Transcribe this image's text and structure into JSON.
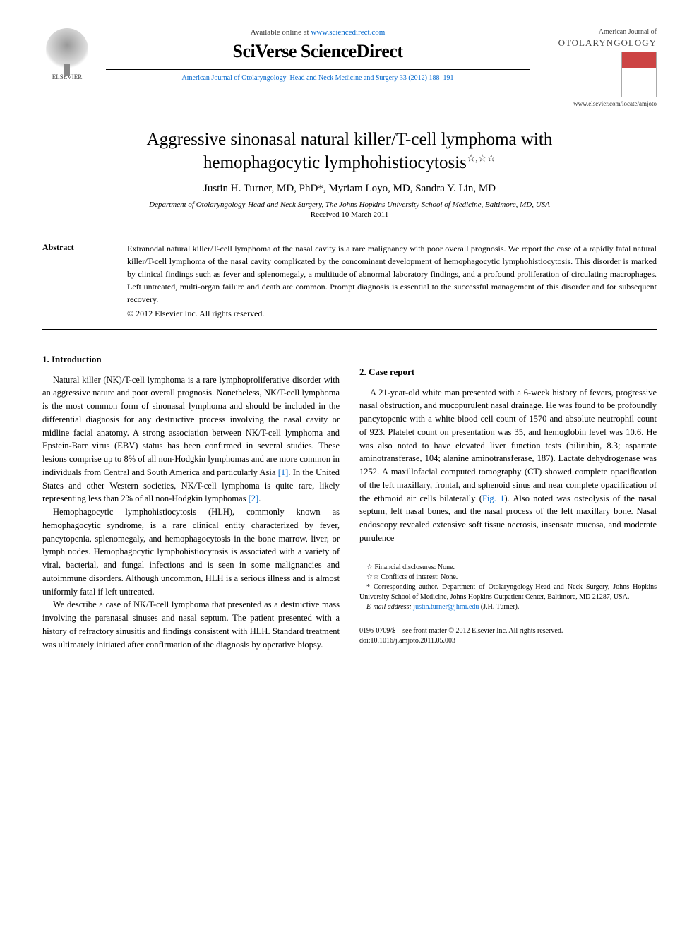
{
  "header": {
    "publisher_logo_label": "ELSEVIER",
    "available_text": "Available online at ",
    "available_url": "www.sciencedirect.com",
    "platform_name": "SciVerse ScienceDirect",
    "journal_reference": "American Journal of Otolaryngology–Head and Neck Medicine and Surgery 33 (2012) 188–191",
    "journal_name_line1": "American Journal of",
    "journal_name_line2": "OTOLARYNGOLOGY",
    "locate_url": "www.elsevier.com/locate/amjoto"
  },
  "article": {
    "title_line1": "Aggressive sinonasal natural killer/T-cell lymphoma with",
    "title_line2": "hemophagocytic lymphohistiocytosis",
    "title_marks": "☆,☆☆",
    "authors": "Justin H. Turner, MD, PhD*, Myriam Loyo, MD, Sandra Y. Lin, MD",
    "affiliation": "Department of Otolaryngology-Head and Neck Surgery, The Johns Hopkins University School of Medicine, Baltimore, MD, USA",
    "received": "Received 10 March 2011"
  },
  "abstract": {
    "label": "Abstract",
    "text": "Extranodal natural killer/T-cell lymphoma of the nasal cavity is a rare malignancy with poor overall prognosis. We report the case of a rapidly fatal natural killer/T-cell lymphoma of the nasal cavity complicated by the concominant development of hemophagocytic lymphohistiocytosis. This disorder is marked by clinical findings such as fever and splenomegaly, a multitude of abnormal laboratory findings, and a profound proliferation of circulating macrophages. Left untreated, multi-organ failure and death are common. Prompt diagnosis is essential to the successful management of this disorder and for subsequent recovery.",
    "copyright": "© 2012 Elsevier Inc. All rights reserved."
  },
  "sections": {
    "intro_heading": "1. Introduction",
    "intro_p1": "Natural killer (NK)/T-cell lymphoma is a rare lymphoproliferative disorder with an aggressive nature and poor overall prognosis. Nonetheless, NK/T-cell lymphoma is the most common form of sinonasal lymphoma and should be included in the differential diagnosis for any destructive process involving the nasal cavity or midline facial anatomy. A strong association between NK/T-cell lymphoma and Epstein-Barr virus (EBV) status has been confirmed in several studies. These lesions comprise up to 8% of all non-Hodgkin lymphomas and are more common in individuals from Central and South America and particularly Asia ",
    "intro_p1_cite1": "[1]",
    "intro_p1_cont": ". In the United States and other Western societies, NK/T-cell lymphoma is quite rare, likely representing less than 2% of all non-Hodgkin lymphomas ",
    "intro_p1_cite2": "[2]",
    "intro_p1_end": ".",
    "intro_p2": "Hemophagocytic lymphohistiocytosis (HLH), commonly known as hemophagocytic syndrome, is a rare clinical entity characterized by fever, pancytopenia, splenomegaly, and hemophagocytosis in the bone marrow, liver, or lymph nodes. Hemophagocytic lymphohistiocytosis is associated with a variety of viral, bacterial, and fungal infections and is seen in some malignancies and autoimmune disorders. Although uncommon, HLH is a serious illness and is almost uniformly fatal if left untreated.",
    "intro_p3": "We describe a case of NK/T-cell lymphoma that presented as a destructive mass involving the paranasal sinuses and nasal septum. The patient presented with a history of refractory sinusitis and findings consistent with HLH. Standard treatment was ultimately initiated after confirmation of the diagnosis by operative biopsy.",
    "case_heading": "2. Case report",
    "case_p1_a": "A 21-year-old white man presented with a 6-week history of fevers, progressive nasal obstruction, and mucopurulent nasal drainage. He was found to be profoundly pancytopenic with a white blood cell count of 1570 and absolute neutrophil count of 923. Platelet count on presentation was 35, and hemoglobin level was 10.6. He was also noted to have elevated liver function tests (bilirubin, 8.3; aspartate aminotransferase, 104; alanine aminotransferase, 187). Lactate dehydrogenase was 1252. A maxillofacial computed tomography (CT) showed complete opacification of the left maxillary, frontal, and sphenoid sinus and near complete opacification of the ethmoid air cells bilaterally (",
    "case_fig_cite": "Fig. 1",
    "case_p1_b": "). Also noted was osteolysis of the nasal septum, left nasal bones, and the nasal process of the left maxillary bone. Nasal endoscopy revealed extensive soft tissue necrosis, insensate mucosa, and moderate purulence"
  },
  "footnotes": {
    "fn1": "☆ Financial disclosures: None.",
    "fn2": "☆☆ Conflicts of interest: None.",
    "fn3": "* Corresponding author. Department of Otolaryngology-Head and Neck Surgery, Johns Hopkins University School of Medicine, Johns Hopkins Outpatient Center, Baltimore, MD 21287, USA.",
    "fn4_label": "E-mail address: ",
    "fn4_email": "justin.turner@jhmi.edu",
    "fn4_tail": " (J.H. Turner)."
  },
  "footer": {
    "line1": "0196-0709/$ – see front matter © 2012 Elsevier Inc. All rights reserved.",
    "line2": "doi:10.1016/j.amjoto.2011.05.003"
  },
  "colors": {
    "link": "#0066cc",
    "text": "#000000",
    "background": "#ffffff"
  }
}
